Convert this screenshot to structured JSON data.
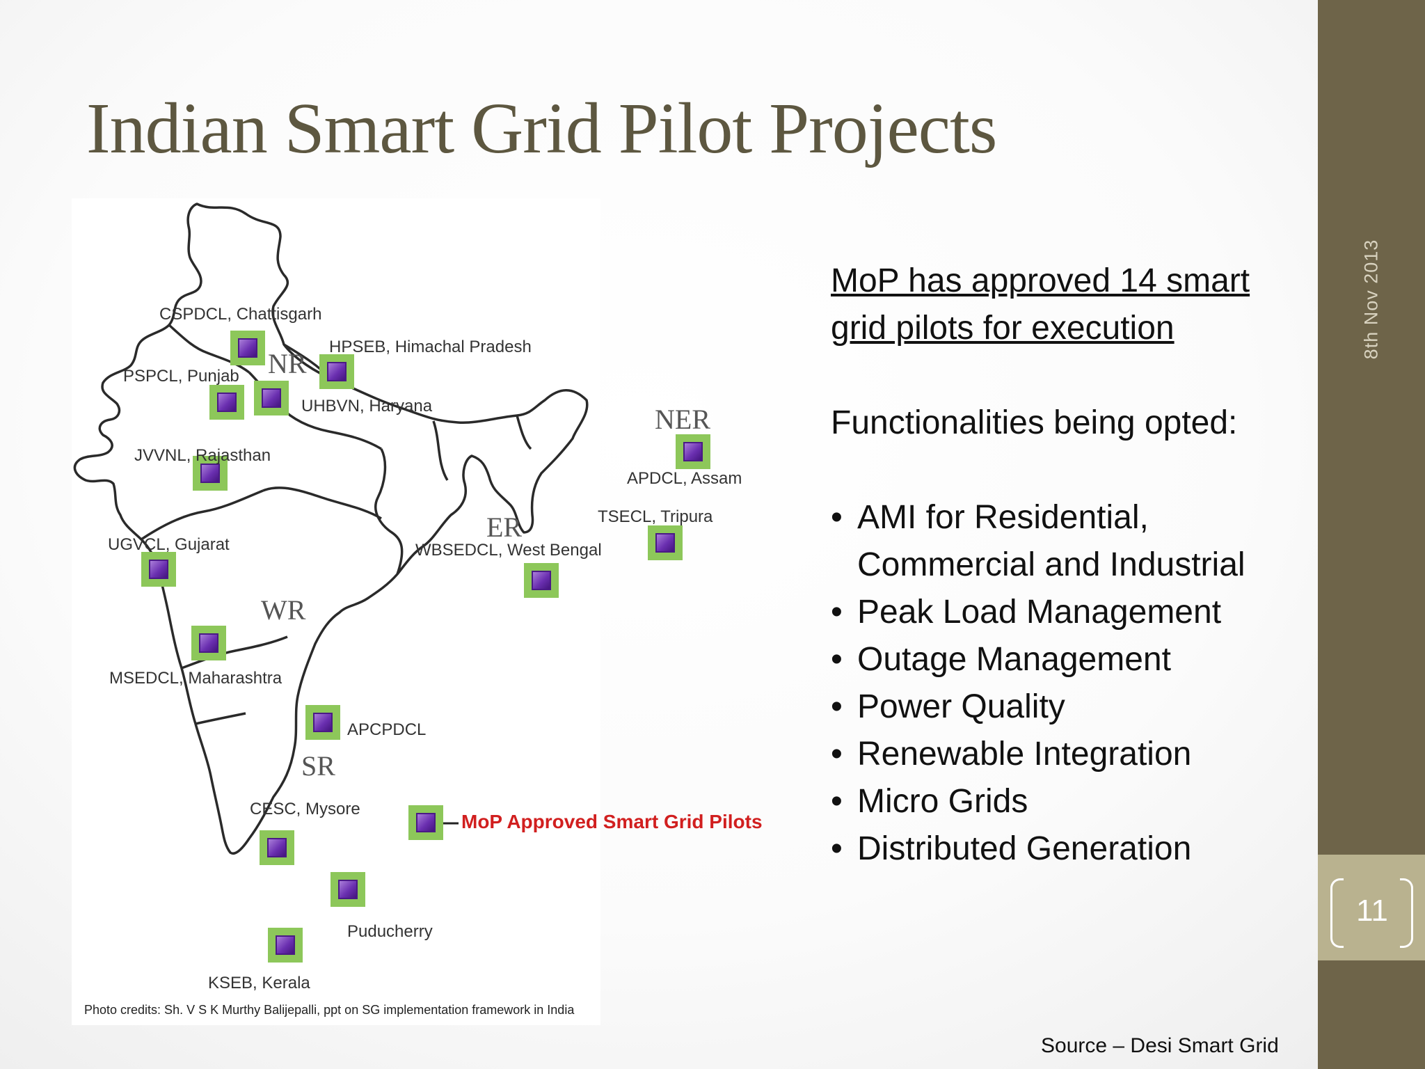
{
  "slide": {
    "title": "Indian Smart Grid Pilot Projects",
    "date": "8th Nov 2013",
    "page_number": "11",
    "source": "Source – Desi Smart Grid",
    "accent_color": "#6e6449",
    "title_color": "#5d5740"
  },
  "content": {
    "heading": "MoP has approved 14 smart grid pilots for execution",
    "subheading": "Functionalities being opted:",
    "bullets": [
      "AMI for Residential, Commercial and Industrial",
      "Peak Load Management",
      "Outage Management",
      "Power Quality",
      "Renewable Integration",
      "Micro Grids",
      "Distributed Generation"
    ]
  },
  "map": {
    "regions": [
      "NR",
      "NER",
      "ER",
      "WR",
      "SR"
    ],
    "pilots": [
      "CSPDCL, Chattisgarh",
      "HPSEB, Himachal Pradesh",
      "PSPCL, Punjab",
      "UHBVN, Haryana",
      "JVVNL, Rajasthan",
      "APDCL, Assam",
      "TSECL, Tripura",
      "UGVCL, Gujarat",
      "WBSEDCL, West Bengal",
      "MSEDCL, Maharashtra",
      "APCPDCL",
      "CESC, Mysore",
      "Puducherry",
      "KSEB, Kerala"
    ],
    "legend": "MoP Approved Smart Grid Pilots",
    "credits": "Photo credits: Sh. V S K Murthy Balijepalli, ppt on SG implementation framework in India",
    "marker_color": "#8dc75a",
    "legend_color": "#d11f1f"
  }
}
